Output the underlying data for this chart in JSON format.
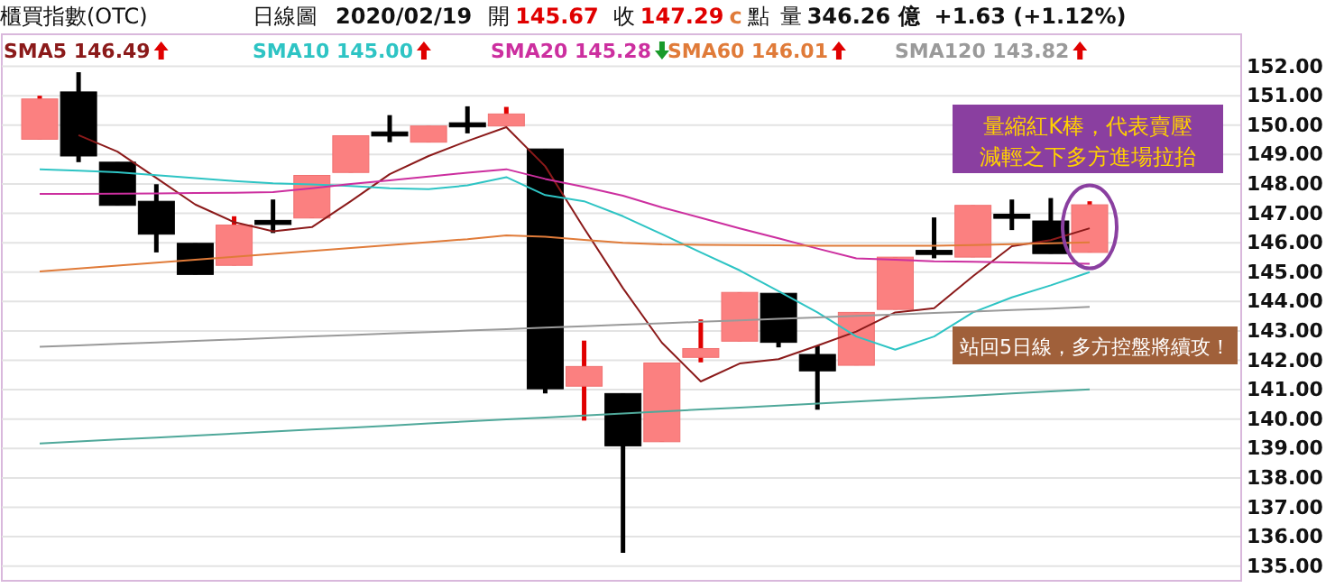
{
  "chart_data": {
    "type": "candlestick",
    "title": "櫃買指數(OTC)",
    "subtitle": "日線圖",
    "annotations": [
      "2020/02/19",
      "開",
      "145.67",
      "收",
      "147.29",
      "c",
      "點",
      "量",
      "346.26 億",
      "+1.63 (+1.12%)",
      "量縮紅K棒，代表賣壓減輕之下多方進場拉抬",
      "站回5日線，多方控盤將續攻！"
    ],
    "categories": [
      null,
      null,
      null,
      null,
      null,
      null,
      null,
      null,
      null,
      null,
      null,
      null,
      null,
      null,
      null,
      null,
      null,
      null,
      null,
      null,
      null,
      null,
      null,
      null,
      null,
      null,
      null,
      null
    ],
    "ohlc": [
      [
        149.52,
        151.0,
        149.52,
        150.89
      ],
      [
        151.13,
        151.8,
        148.74,
        148.95
      ],
      [
        148.74,
        148.74,
        147.27,
        147.27
      ],
      [
        147.41,
        147.99,
        145.67,
        146.29
      ],
      [
        145.98,
        145.98,
        144.92,
        144.92
      ],
      [
        145.23,
        146.9,
        145.23,
        146.6
      ],
      [
        146.76,
        147.47,
        146.33,
        146.62
      ],
      [
        146.84,
        148.29,
        146.84,
        148.29
      ],
      [
        148.39,
        149.64,
        148.39,
        149.64
      ],
      [
        149.77,
        150.34,
        149.42,
        149.63
      ],
      [
        149.42,
        149.97,
        149.42,
        149.97
      ],
      [
        150.08,
        150.64,
        149.72,
        149.94
      ],
      [
        149.97,
        150.62,
        149.97,
        150.38
      ],
      [
        149.19,
        149.19,
        140.87,
        141.03
      ],
      [
        141.12,
        142.67,
        139.95,
        141.79
      ],
      [
        140.87,
        140.87,
        135.45,
        139.09
      ],
      [
        139.23,
        141.91,
        139.23,
        141.91
      ],
      [
        142.1,
        143.39,
        141.93,
        142.4
      ],
      [
        142.65,
        144.31,
        142.65,
        144.31
      ],
      [
        144.28,
        144.28,
        142.44,
        142.61
      ],
      [
        142.2,
        142.5,
        140.32,
        141.64
      ],
      [
        141.83,
        143.63,
        141.83,
        143.63
      ],
      [
        143.73,
        145.51,
        143.73,
        145.51
      ],
      [
        145.74,
        146.86,
        145.47,
        145.6
      ],
      [
        145.51,
        147.27,
        145.51,
        147.27
      ],
      [
        146.97,
        147.47,
        146.43,
        146.83
      ],
      [
        146.74,
        147.52,
        145.63,
        145.63
      ],
      [
        145.67,
        147.41,
        145.67,
        147.29
      ]
    ],
    "series": [
      {
        "type": "line",
        "name": "SMA5 146.49",
        "color": "#8b1a1a",
        "values": [
          null,
          149.66,
          149.1,
          148.2,
          147.3,
          146.7,
          146.39,
          146.53,
          147.41,
          148.33,
          148.95,
          149.46,
          149.93,
          148.6,
          146.49,
          144.45,
          142.6,
          141.28,
          141.89,
          142.04,
          142.5,
          142.98,
          143.63,
          143.77,
          144.86,
          145.88,
          146.09,
          146.49
        ]
      },
      {
        "type": "line",
        "name": "SMA10 145.00",
        "color": "#2ec4c4",
        "values": [
          148.5,
          148.45,
          148.4,
          148.3,
          148.2,
          148.1,
          148.02,
          147.98,
          147.93,
          147.85,
          147.82,
          147.95,
          148.23,
          147.62,
          147.41,
          146.9,
          146.29,
          145.67,
          145.06,
          144.35,
          143.63,
          142.81,
          142.36,
          142.81,
          143.63,
          144.14,
          144.55,
          145.0
        ]
      },
      {
        "type": "line",
        "name": "SMA20 145.28",
        "color": "#cc2f9f",
        "values": [
          147.66,
          147.66,
          147.67,
          147.68,
          147.69,
          147.7,
          147.72,
          147.85,
          148.0,
          148.12,
          148.25,
          148.38,
          148.5,
          148.17,
          147.9,
          147.6,
          147.2,
          146.85,
          146.49,
          146.15,
          145.8,
          145.47,
          145.42,
          145.37,
          145.35,
          145.33,
          145.31,
          145.28
        ]
      },
      {
        "type": "line",
        "name": "SMA60 146.01",
        "color": "#e07b39",
        "values": [
          145.02,
          145.12,
          145.22,
          145.32,
          145.42,
          145.52,
          145.62,
          145.72,
          145.82,
          145.92,
          146.02,
          146.12,
          146.25,
          146.2,
          146.1,
          146.0,
          145.94,
          145.93,
          145.92,
          145.91,
          145.9,
          145.9,
          145.9,
          145.9,
          145.92,
          145.95,
          145.98,
          146.01
        ]
      },
      {
        "type": "line",
        "name": "SMA120 143.82",
        "color": "#9a9a9a",
        "values": [
          142.46,
          142.51,
          142.56,
          142.61,
          142.66,
          142.71,
          142.76,
          142.81,
          142.86,
          142.91,
          142.96,
          143.01,
          143.06,
          143.11,
          143.16,
          143.21,
          143.26,
          143.31,
          143.36,
          143.41,
          143.46,
          143.51,
          143.56,
          143.61,
          143.66,
          143.71,
          143.76,
          143.82
        ]
      },
      {
        "type": "line",
        "color": "#4fa89a",
        "values": [
          139.17,
          139.24,
          139.31,
          139.37,
          139.44,
          139.51,
          139.58,
          139.65,
          139.71,
          139.78,
          139.85,
          139.92,
          139.99,
          140.05,
          140.12,
          140.19,
          140.26,
          140.33,
          140.39,
          140.46,
          140.53,
          140.6,
          140.67,
          140.73,
          140.8,
          140.87,
          140.94,
          141.01
        ]
      }
    ],
    "ylim": [
      134.5,
      152.6
    ],
    "yticks": [
      {
        "value": 135,
        "label": "135.00"
      },
      {
        "value": 136,
        "label": "136.00"
      },
      {
        "value": 137,
        "label": "137.00"
      },
      {
        "value": 138,
        "label": "138.00"
      },
      {
        "value": 139,
        "label": "139.00"
      },
      {
        "value": 140,
        "label": "140.00"
      },
      {
        "value": 141,
        "label": "141.00"
      },
      {
        "value": 142,
        "label": "142.00"
      },
      {
        "value": 143,
        "label": "143.00"
      },
      {
        "value": 144,
        "label": "144.00"
      },
      {
        "value": 145,
        "label": "145.00"
      },
      {
        "value": 146,
        "label": "146.00"
      },
      {
        "value": 147,
        "label": "147.00"
      },
      {
        "value": 148,
        "label": "148.00"
      },
      {
        "value": 149,
        "label": "149.00"
      },
      {
        "value": 150,
        "label": "150.00"
      },
      {
        "value": 151,
        "label": "151.00"
      },
      {
        "value": 152,
        "label": "152.00"
      }
    ],
    "grid": "y",
    "legend": "top left",
    "tick_labels": "y",
    "line_style": "solid",
    "marker": "none"
  }
}
